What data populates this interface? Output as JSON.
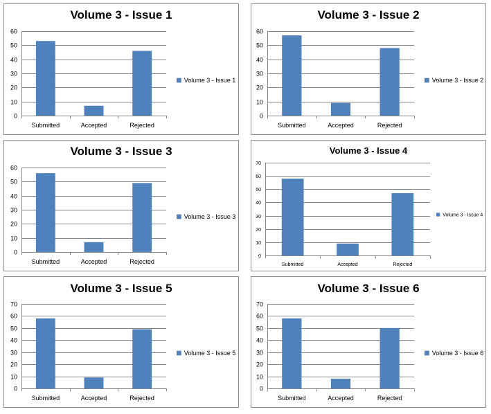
{
  "colors": {
    "bar": "#4f81bd",
    "grid": "#868686"
  },
  "chart_data": [
    {
      "type": "bar",
      "title": "Volume 3 - Issue 1",
      "categories": [
        "Submitted",
        "Accepted",
        "Rejected"
      ],
      "series": [
        {
          "name": "Volume 3 - Issue 1",
          "values": [
            53,
            7,
            46
          ]
        }
      ],
      "ylim": [
        0,
        60
      ],
      "yticks": [
        0,
        10,
        20,
        30,
        40,
        50,
        60
      ],
      "grid": true,
      "legend": "right"
    },
    {
      "type": "bar",
      "title": "Volume 3 - Issue 2",
      "categories": [
        "Submitted",
        "Accepted",
        "Rejected"
      ],
      "series": [
        {
          "name": "Volume 3 - Issue 2",
          "values": [
            57,
            9,
            48
          ]
        }
      ],
      "ylim": [
        0,
        60
      ],
      "yticks": [
        0,
        10,
        20,
        30,
        40,
        50,
        60
      ],
      "grid": true,
      "legend": "right"
    },
    {
      "type": "bar",
      "title": "Volume 3 - Issue 3",
      "categories": [
        "Submitted",
        "Accepted",
        "Rejected"
      ],
      "series": [
        {
          "name": "Volume 3 - Issue 3",
          "values": [
            56,
            7,
            49
          ]
        }
      ],
      "ylim": [
        0,
        60
      ],
      "yticks": [
        0,
        10,
        20,
        30,
        40,
        50,
        60
      ],
      "grid": true,
      "legend": "right"
    },
    {
      "type": "bar",
      "title": "Volume 3 - Issue 4",
      "categories": [
        "Submitted",
        "Accepted",
        "Rejected"
      ],
      "series": [
        {
          "name": "Volume 3 - Issue 4",
          "values": [
            58,
            9,
            47
          ]
        }
      ],
      "ylim": [
        0,
        70
      ],
      "yticks": [
        0,
        10,
        20,
        30,
        40,
        50,
        60,
        70
      ],
      "grid": true,
      "legend": "right"
    },
    {
      "type": "bar",
      "title": "Volume 3 - Issue 5",
      "categories": [
        "Submitted",
        "Accepted",
        "Rejected"
      ],
      "series": [
        {
          "name": "Volume 3 - Issue 5",
          "values": [
            58,
            9,
            49
          ]
        }
      ],
      "ylim": [
        0,
        70
      ],
      "yticks": [
        0,
        10,
        20,
        30,
        40,
        50,
        60,
        70
      ],
      "grid": true,
      "legend": "right"
    },
    {
      "type": "bar",
      "title": "Volume 3 - Issue 6",
      "categories": [
        "Submitted",
        "Accepted",
        "Rejected"
      ],
      "series": [
        {
          "name": "Volume 3 - Issue 6",
          "values": [
            58,
            8,
            50
          ]
        }
      ],
      "ylim": [
        0,
        70
      ],
      "yticks": [
        0,
        10,
        20,
        30,
        40,
        50,
        60,
        70
      ],
      "grid": true,
      "legend": "right"
    }
  ]
}
